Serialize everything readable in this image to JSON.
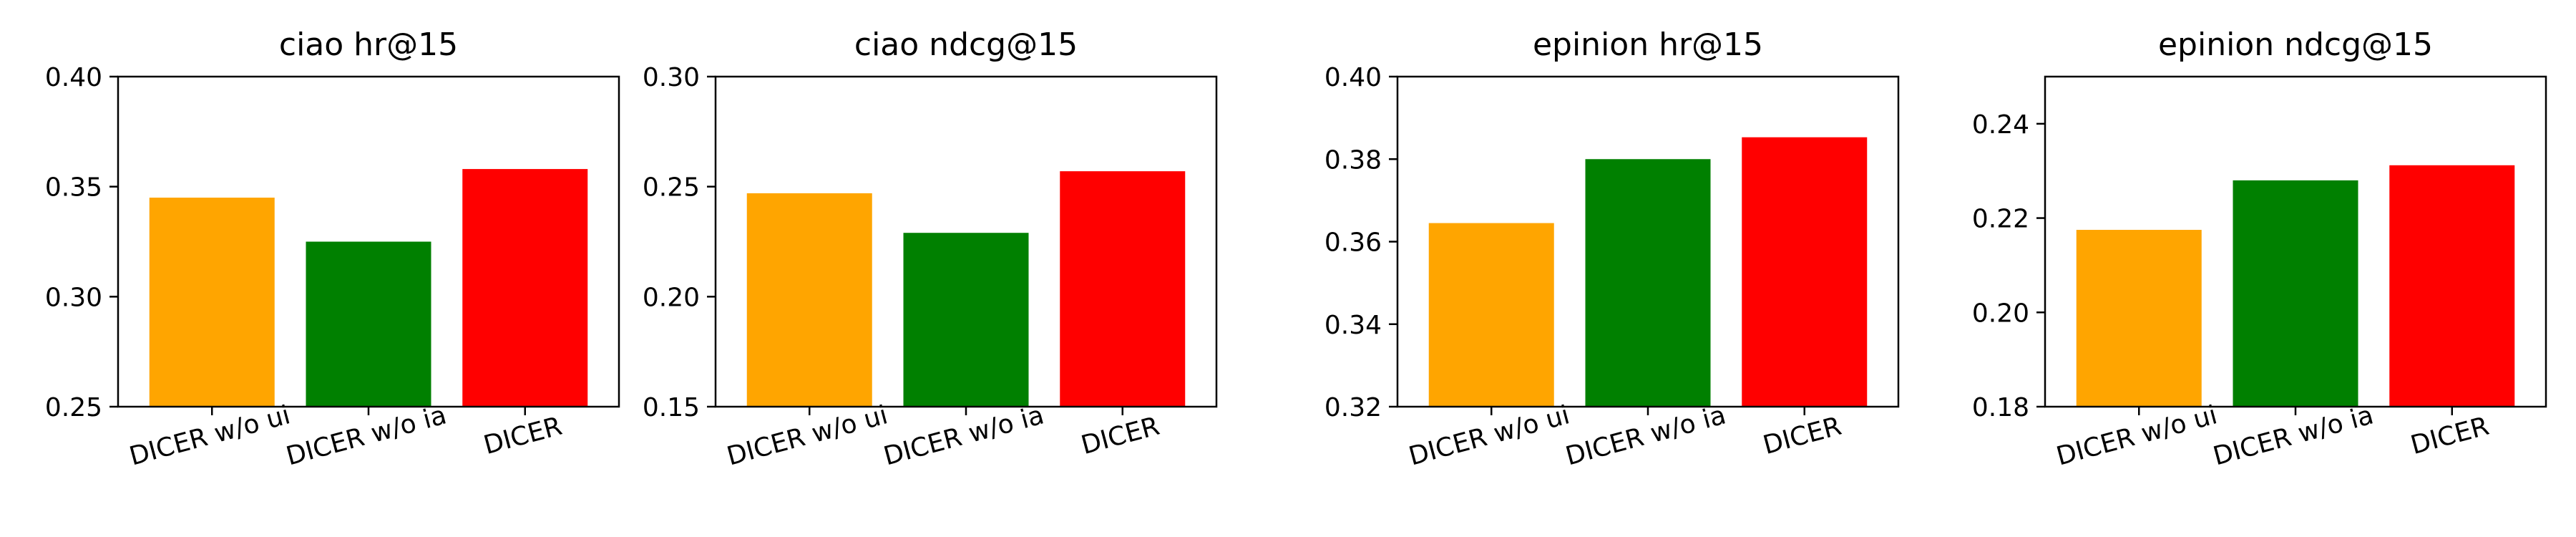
{
  "chart_data": [
    {
      "type": "bar",
      "title": "ciao hr@15",
      "categories": [
        "DICER w/o ui",
        "DICER w/o ia",
        "DICER"
      ],
      "values": [
        0.345,
        0.325,
        0.358
      ],
      "colors": [
        "#ffa500",
        "#008000",
        "#ff0000"
      ],
      "ylim": [
        0.25,
        0.4
      ],
      "yticks": [
        "0.25",
        "0.30",
        "0.35",
        "0.40"
      ],
      "xlabel": "",
      "ylabel": "",
      "grid": false
    },
    {
      "type": "bar",
      "title": "ciao ndcg@15",
      "categories": [
        "DICER w/o ui",
        "DICER w/o ia",
        "DICER"
      ],
      "values": [
        0.247,
        0.229,
        0.257
      ],
      "colors": [
        "#ffa500",
        "#008000",
        "#ff0000"
      ],
      "ylim": [
        0.15,
        0.3
      ],
      "yticks": [
        "0.15",
        "0.20",
        "0.25",
        "0.30"
      ],
      "xlabel": "",
      "ylabel": "",
      "grid": false
    },
    {
      "type": "bar",
      "title": "epinion hr@15",
      "categories": [
        "DICER w/o ui",
        "DICER w/o ia",
        "DICER"
      ],
      "values": [
        0.3645,
        0.38,
        0.3853
      ],
      "colors": [
        "#ffa500",
        "#008000",
        "#ff0000"
      ],
      "ylim": [
        0.32,
        0.4
      ],
      "yticks": [
        "0.32",
        "0.34",
        "0.36",
        "0.38",
        "0.40"
      ],
      "xlabel": "",
      "ylabel": "",
      "grid": false
    },
    {
      "type": "bar",
      "title": "epinion ndcg@15",
      "categories": [
        "DICER w/o ui",
        "DICER w/o ia",
        "DICER"
      ],
      "values": [
        0.2175,
        0.228,
        0.2312
      ],
      "colors": [
        "#ffa500",
        "#008000",
        "#ff0000"
      ],
      "ylim": [
        0.18,
        0.25
      ],
      "yticks": [
        "0.18",
        "0.20",
        "0.22",
        "0.24"
      ],
      "xlabel": "",
      "ylabel": "",
      "grid": false
    }
  ]
}
